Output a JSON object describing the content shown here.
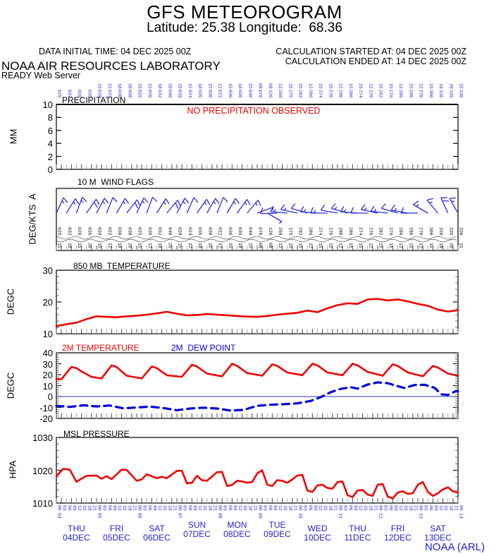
{
  "header": {
    "title": "GFS METEOROGRAM",
    "subtitle": "Latitude: 25.38 Longitude:  68.36",
    "data_initial_time": "DATA INITIAL TIME: 04 DEC 2025 00Z",
    "calc_started": "CALCULATION STARTED AT: 04 DEC 2025 00Z",
    "calc_ended": "CALCULATION ENDED AT: 14 DEC 2025 00Z",
    "org": "NOAA AIR RESOURCES LABORATORY",
    "server": "READY Web Server"
  },
  "footer": {
    "credit": "NOAA (ARL)"
  },
  "colors": {
    "red": "#ee0000",
    "blue": "#2222cc",
    "barb_blue": "#2a2ad8",
    "black": "#111111",
    "tick_dark": "#444444",
    "tick_gray": "#a8a8a8"
  },
  "x_axis": {
    "hours_total": 240,
    "hour_cycle": [
      "00",
      "03",
      "06",
      "09",
      "12",
      "15",
      "18",
      "21"
    ],
    "days": [
      {
        "name": "THU",
        "date": "04DEC"
      },
      {
        "name": "FRI",
        "date": "05DEC"
      },
      {
        "name": "SAT",
        "date": "06DEC"
      },
      {
        "name": "SUN",
        "date": "07DEC"
      },
      {
        "name": "MON",
        "date": "08DEC"
      },
      {
        "name": "TUE",
        "date": "09DEC"
      },
      {
        "name": "WED",
        "date": "10DEC"
      },
      {
        "name": "THU",
        "date": "11DEC"
      },
      {
        "name": "FRI",
        "date": "12DEC"
      },
      {
        "name": "SAT",
        "date": "13DEC"
      }
    ],
    "start_day_of_month": 4
  },
  "chart_data": [
    {
      "type": "bar",
      "id": "precipitation",
      "title": "PRECIPITATION",
      "ylabel": "MM",
      "ylim": [
        0,
        10
      ],
      "yticks": [
        0,
        2,
        4,
        6,
        8,
        10
      ],
      "annotation": "NO PRECIPITATION OBSERVED",
      "categories": [],
      "values": []
    },
    {
      "type": "wind-barbs",
      "id": "wind-10m",
      "title": "10 M  WIND FLAGS",
      "ylabel": "DEG/KTS  A",
      "hours_step": 6,
      "dir": [
        25,
        32,
        20,
        35,
        28,
        22,
        30,
        38,
        25,
        20,
        32,
        40,
        28,
        24,
        35,
        30,
        22,
        30,
        36,
        40,
        70,
        120,
        268,
        275,
        282,
        286,
        274,
        270,
        280,
        286,
        274,
        270,
        282,
        276,
        286,
        280,
        270,
        300,
        320,
        335,
        330
      ],
      "kt": [
        15,
        18,
        15,
        20,
        15,
        12,
        18,
        20,
        15,
        12,
        18,
        20,
        15,
        12,
        18,
        15,
        12,
        15,
        18,
        15,
        8,
        8,
        12,
        15,
        15,
        12,
        15,
        15,
        12,
        15,
        15,
        12,
        15,
        15,
        12,
        15,
        12,
        15,
        18,
        20,
        15
      ]
    },
    {
      "type": "line",
      "id": "t850",
      "title": "850 MB  TEMPERATURE",
      "ylabel": "DEGC",
      "ylim": [
        10,
        30
      ],
      "yticks": [
        10,
        20,
        30
      ],
      "series": [
        {
          "name": "850 MB TEMPERATURE",
          "color": "#ee0000",
          "dash": false,
          "x": [
            0,
            6,
            12,
            18,
            24,
            30,
            36,
            42,
            48,
            54,
            60,
            66,
            72,
            78,
            84,
            90,
            96,
            102,
            108,
            114,
            120,
            126,
            132,
            138,
            144,
            150,
            156,
            162,
            168,
            174,
            180,
            186,
            192,
            198,
            204,
            210,
            216,
            222,
            228,
            234,
            240
          ],
          "y": [
            12.4,
            13.0,
            13.5,
            14.6,
            15.5,
            15.3,
            15.2,
            15.5,
            15.7,
            16.0,
            16.4,
            16.9,
            16.3,
            15.8,
            15.9,
            16.2,
            16.0,
            15.8,
            15.6,
            15.4,
            15.3,
            15.6,
            16.0,
            16.3,
            16.6,
            17.3,
            16.8,
            18.0,
            19.0,
            19.6,
            19.4,
            20.8,
            21.0,
            20.5,
            20.8,
            20.2,
            19.4,
            18.8,
            17.6,
            17.0,
            17.4
          ]
        }
      ]
    },
    {
      "type": "line",
      "id": "t2m",
      "titles": [
        {
          "label": "2M TEMPERATURE",
          "color": "#ee0000"
        },
        {
          "label": "2M  DEW POINT",
          "color": "#0000dd"
        }
      ],
      "ylabel": "DEGC",
      "ylim": [
        -20,
        40
      ],
      "yticks": [
        -20,
        -10,
        0,
        10,
        20,
        30,
        40
      ],
      "zero_line": 0,
      "series": [
        {
          "name": "2M TEMPERATURE",
          "color": "#ee0000",
          "dash": false,
          "x": [
            0,
            3,
            9,
            12,
            15,
            21,
            27,
            33,
            36,
            42,
            51,
            57,
            60,
            66,
            75,
            81,
            84,
            90,
            99,
            105,
            108,
            114,
            123,
            129,
            132,
            138,
            147,
            153,
            156,
            162,
            171,
            177,
            180,
            186,
            195,
            201,
            204,
            210,
            219,
            225,
            228,
            234,
            240
          ],
          "y": [
            16,
            15.8,
            27,
            26,
            23,
            18,
            16.5,
            28.5,
            27,
            19,
            16.5,
            27.5,
            26,
            19.5,
            18,
            29,
            27.5,
            21,
            18.5,
            30,
            28,
            21.5,
            19,
            29.5,
            28,
            22,
            19.5,
            30,
            28.5,
            22,
            19.5,
            30,
            28.5,
            22.5,
            19,
            29.5,
            28,
            22,
            18.5,
            28,
            26.5,
            21,
            19
          ]
        },
        {
          "name": "2M DEW POINT",
          "color": "#0000dd",
          "dash": true,
          "x": [
            0,
            8,
            16,
            24,
            32,
            40,
            48,
            56,
            64,
            72,
            80,
            88,
            96,
            104,
            112,
            120,
            128,
            136,
            144,
            152,
            158,
            164,
            170,
            176,
            180,
            186,
            192,
            198,
            204,
            208,
            214,
            220,
            226,
            230,
            234,
            238,
            240
          ],
          "y": [
            -8.5,
            -9.5,
            -8,
            -9,
            -8.2,
            -10.8,
            -10,
            -9.2,
            -10.5,
            -12.5,
            -11,
            -10.2,
            -11,
            -12.8,
            -12.2,
            -8.5,
            -7.5,
            -7,
            -6.2,
            -4,
            -0.5,
            4,
            7,
            8.5,
            7.2,
            11,
            13,
            12.2,
            9.5,
            7.8,
            10.5,
            10.8,
            8,
            2,
            1.5,
            4.5,
            5
          ]
        }
      ]
    },
    {
      "type": "line",
      "id": "mslp",
      "title": "MSL PRESSURE",
      "ylabel": "HPA",
      "ylim": [
        1010,
        1030
      ],
      "yticks": [
        1010,
        1020,
        1030
      ],
      "series": [
        {
          "name": "MSL PRESSURE",
          "color": "#ee0000",
          "dash": false,
          "x": [
            0,
            4,
            8,
            12,
            18,
            24,
            27,
            30,
            33,
            39,
            42,
            48,
            51,
            54,
            57,
            60,
            63,
            66,
            72,
            75,
            78,
            81,
            84,
            87,
            90,
            96,
            99,
            102,
            105,
            108,
            111,
            114,
            117,
            120,
            123,
            126,
            129,
            132,
            135,
            138,
            141,
            144,
            147,
            150,
            153,
            156,
            159,
            162,
            165,
            168,
            171,
            174,
            177,
            180,
            183,
            186,
            189,
            192,
            195,
            198,
            201,
            204,
            207,
            210,
            213,
            216,
            219,
            222,
            225,
            228,
            231,
            234,
            237,
            240
          ],
          "y": [
            1018.2,
            1020.4,
            1020.2,
            1016.5,
            1018.3,
            1018.4,
            1017.4,
            1018.2,
            1017.3,
            1020.2,
            1020.1,
            1016.8,
            1017.2,
            1018.8,
            1018.2,
            1017.6,
            1018.0,
            1017.6,
            1019.8,
            1019.9,
            1016.0,
            1016.2,
            1018.3,
            1017.0,
            1016.8,
            1019.4,
            1019.5,
            1015.2,
            1015.5,
            1016.8,
            1016.6,
            1016.2,
            1016.4,
            1019.0,
            1020.0,
            1015.6,
            1015.2,
            1017.0,
            1016.8,
            1016.2,
            1017.2,
            1018.4,
            1018.6,
            1013.8,
            1013.4,
            1015.4,
            1015.6,
            1014.6,
            1014.4,
            1016.4,
            1016.6,
            1012.4,
            1011.8,
            1013.8,
            1014.0,
            1012.6,
            1012.2,
            1015.6,
            1015.8,
            1012.0,
            1011.4,
            1013.2,
            1013.6,
            1012.8,
            1013.0,
            1015.6,
            1016.4,
            1013.4,
            1012.2,
            1013.0,
            1014.2,
            1014.8,
            1013.6,
            1013.2
          ]
        }
      ]
    }
  ]
}
